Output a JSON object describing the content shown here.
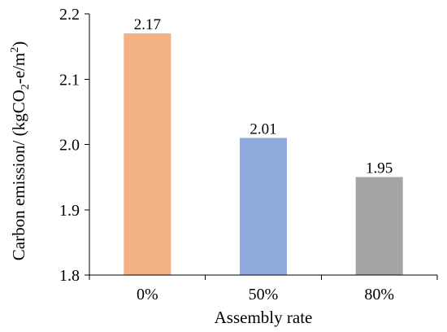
{
  "chart_data": {
    "type": "bar",
    "categories": [
      "0%",
      "50%",
      "80%"
    ],
    "values": [
      2.17,
      2.01,
      1.95
    ],
    "data_labels": [
      "2.17",
      "2.01",
      "1.95"
    ],
    "bar_colors": [
      "#F4B183",
      "#8FAADC",
      "#A5A5A5"
    ],
    "xlabel": "Assembly rate",
    "ylabel": {
      "main": "Carbon emission/ (kgCO",
      "sub": "2",
      "mid": "-e/m",
      "sup": "2",
      "end": ")"
    },
    "ylim": [
      1.8,
      2.2
    ],
    "yticks": [
      1.8,
      1.9,
      2.0,
      2.1,
      2.2
    ],
    "ytick_labels": [
      "1.8",
      "1.9",
      "2.0",
      "2.1",
      "2.2"
    ],
    "grid": false,
    "legend": "none"
  }
}
